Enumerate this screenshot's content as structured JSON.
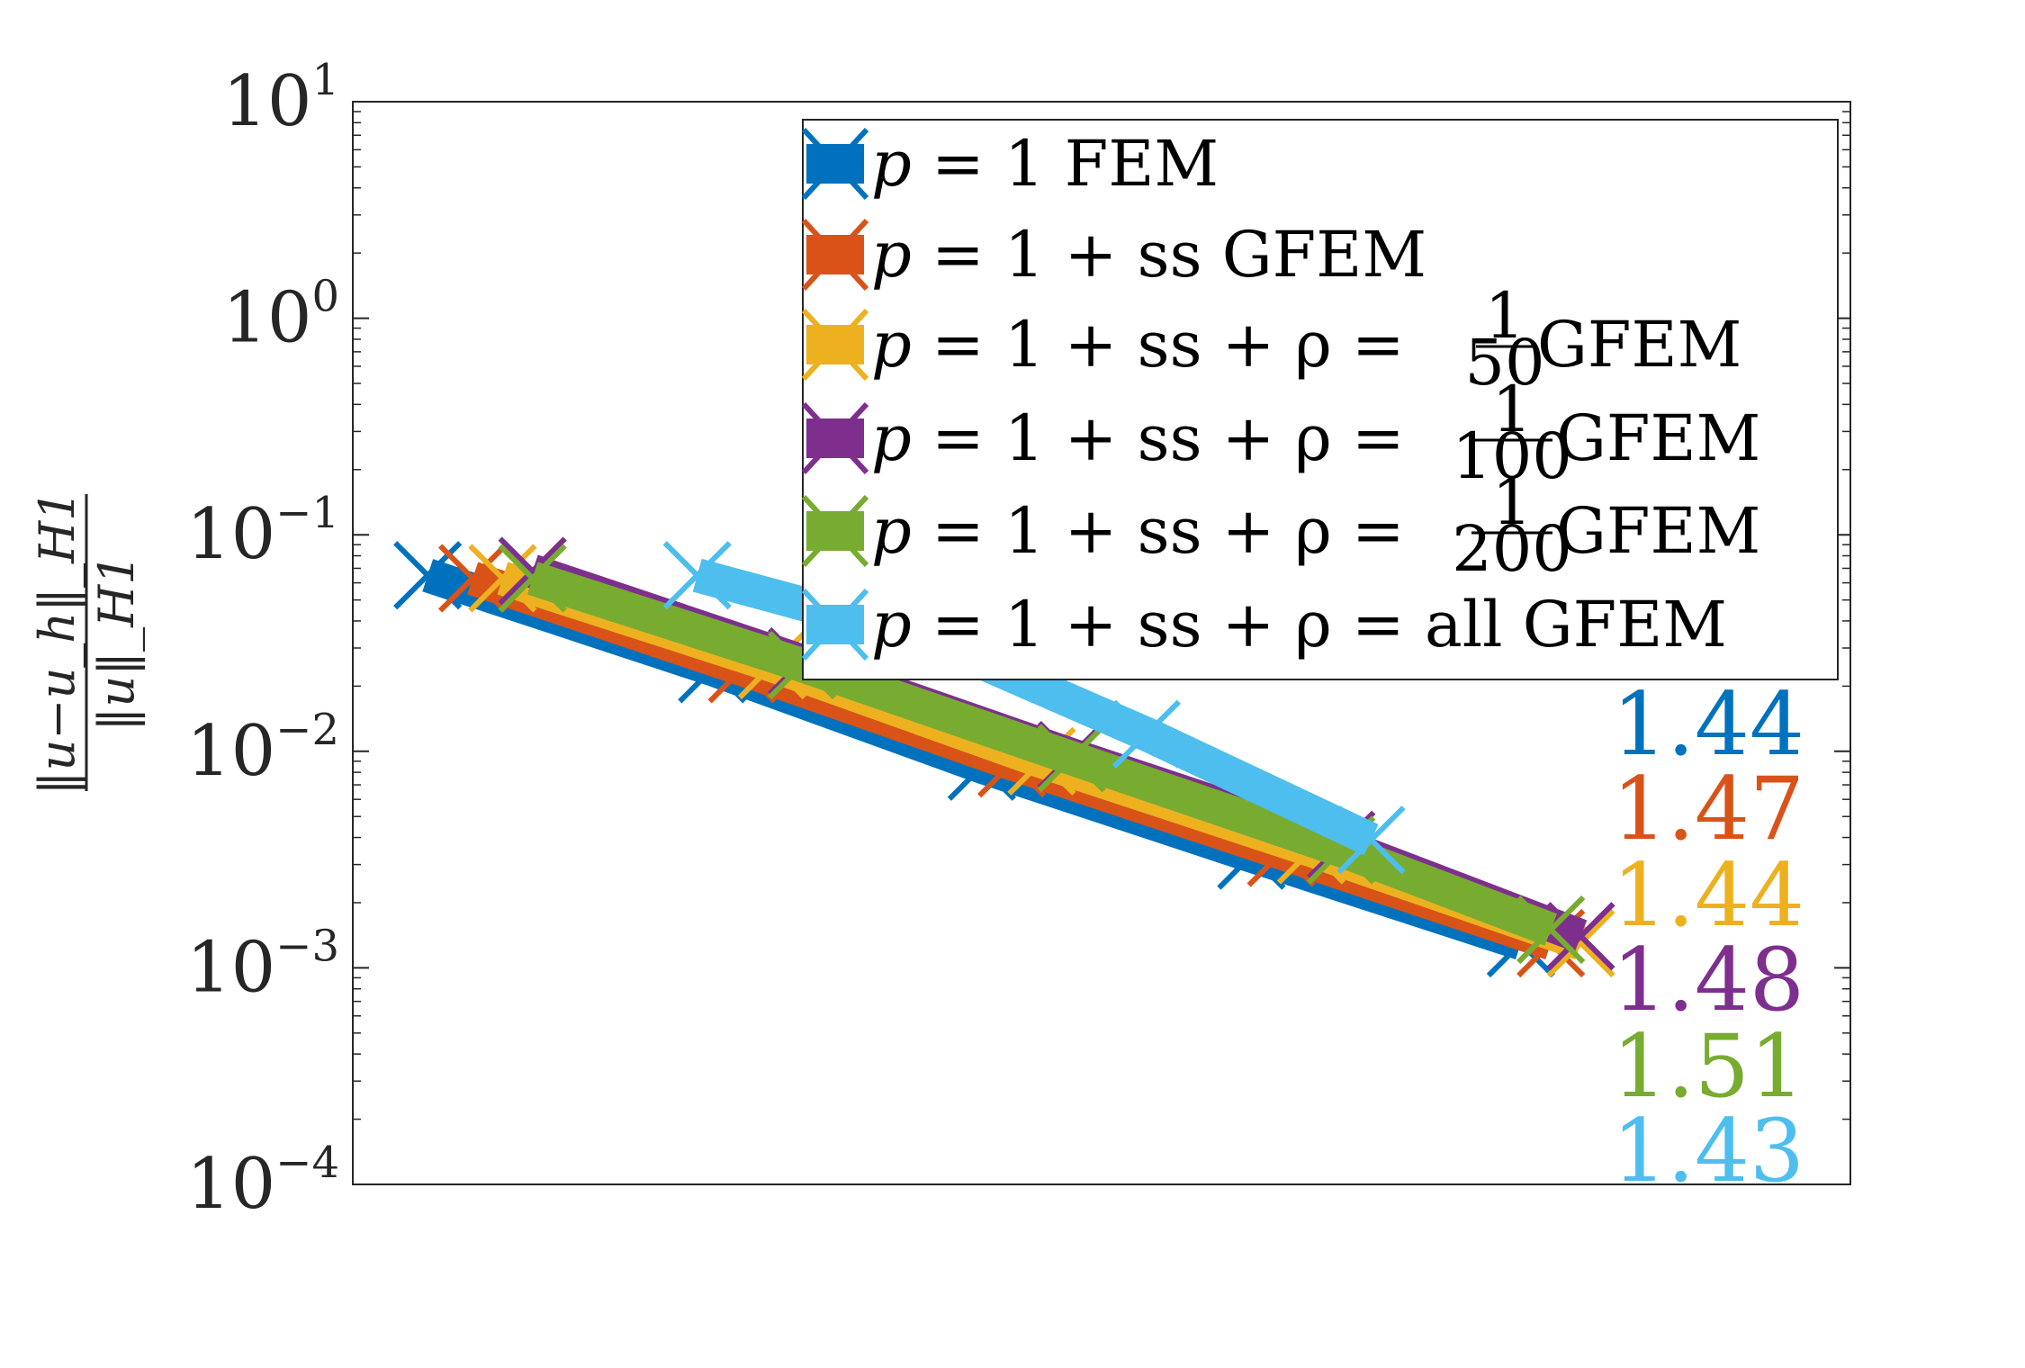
{
  "chart_data": {
    "type": "line",
    "title": "",
    "xlabel": "",
    "ylabel_numerator": "‖u−u_h‖_H1",
    "ylabel_denominator": "‖u‖_H1",
    "yscale": "log",
    "ylim": [
      0.0001,
      10
    ],
    "xlim": [
      0,
      1
    ],
    "x_tick_labels_shown": false,
    "y_ticks": [
      {
        "value": 10,
        "base": "10",
        "exp": "1"
      },
      {
        "value": 1,
        "base": "10",
        "exp": "0"
      },
      {
        "value": 0.1,
        "base": "10",
        "exp": "−1"
      },
      {
        "value": 0.01,
        "base": "10",
        "exp": "−2"
      },
      {
        "value": 0.001,
        "base": "10",
        "exp": "−3"
      },
      {
        "value": 0.0001,
        "base": "10",
        "exp": "−4"
      }
    ],
    "grid": false,
    "legend_position": "top-right",
    "series": [
      {
        "name": "p = 1 FEM",
        "color": "#0072BD",
        "marker": "x",
        "x": [
          0.05,
          0.24,
          0.42,
          0.6,
          0.78
        ],
        "y": [
          0.065,
          0.024,
          0.0085,
          0.0033,
          0.0013
        ]
      },
      {
        "name": "p = 1 + ss GFEM",
        "color": "#D95319",
        "marker": "x",
        "x": [
          0.08,
          0.26,
          0.44,
          0.62,
          0.8
        ],
        "y": [
          0.063,
          0.024,
          0.0088,
          0.0034,
          0.0013
        ]
      },
      {
        "name": "p = 1 + ss + ρ = 1/50 GFEM",
        "color": "#EDB120",
        "marker": "x",
        "x": [
          0.1,
          0.28,
          0.46,
          0.64,
          0.82
        ],
        "y": [
          0.063,
          0.025,
          0.009,
          0.0035,
          0.0013
        ]
      },
      {
        "name": "p = 1 + ss + ρ = 1/100 GFEM",
        "color": "#7E2F8E",
        "marker": "x",
        "x": [
          0.12,
          0.3,
          0.48,
          0.66,
          0.82
        ],
        "y": [
          0.068,
          0.026,
          0.0096,
          0.0037,
          0.0014
        ]
      },
      {
        "name": "p = 1 + ss + ρ = 1/200 GFEM",
        "color": "#77AC30",
        "marker": "x",
        "x": [
          0.12,
          0.3,
          0.48,
          0.66,
          0.8
        ],
        "y": [
          0.063,
          0.025,
          0.0093,
          0.0035,
          0.0015
        ]
      },
      {
        "name": "p = 1 + ss + ρ = all GFEM",
        "color": "#4DBEEE",
        "marker": "x",
        "x": [
          0.23,
          0.38,
          0.53,
          0.68
        ],
        "y": [
          0.065,
          0.034,
          0.012,
          0.0039
        ]
      }
    ],
    "slope_labels": [
      {
        "text": "1.44",
        "color": "#0072BD"
      },
      {
        "text": "1.47",
        "color": "#D95319"
      },
      {
        "text": "1.44",
        "color": "#EDB120"
      },
      {
        "text": "1.48",
        "color": "#7E2F8E"
      },
      {
        "text": "1.51",
        "color": "#77AC30"
      },
      {
        "text": "1.43",
        "color": "#4DBEEE"
      }
    ],
    "legend": [
      {
        "prefix": "p",
        "text": " = 1 FEM",
        "fraction": null,
        "suffix": ""
      },
      {
        "prefix": "p",
        "text": " = 1 + ss GFEM",
        "fraction": null,
        "suffix": ""
      },
      {
        "prefix": "p",
        "text": " = 1 + ss + ρ = ",
        "fraction": {
          "num": "1",
          "den": "50"
        },
        "suffix": " GFEM"
      },
      {
        "prefix": "p",
        "text": " = 1 + ss + ρ = ",
        "fraction": {
          "num": "1",
          "den": "100"
        },
        "suffix": " GFEM"
      },
      {
        "prefix": "p",
        "text": " = 1 + ss + ρ = ",
        "fraction": {
          "num": "1",
          "den": "200"
        },
        "suffix": " GFEM"
      },
      {
        "prefix": "p",
        "text": " = 1 + ss + ρ = all GFEM",
        "fraction": null,
        "suffix": ""
      }
    ]
  }
}
